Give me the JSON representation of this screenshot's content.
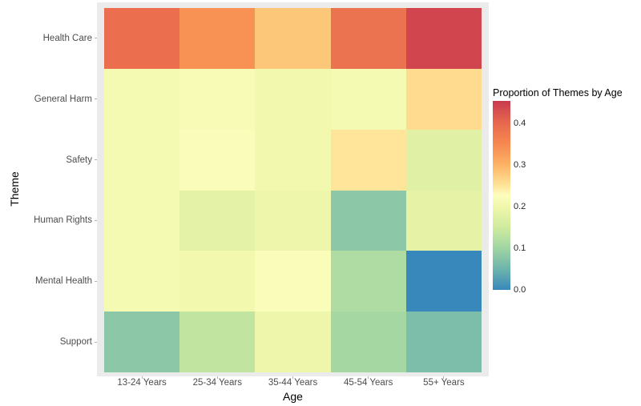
{
  "figure": {
    "background": "#ffffff",
    "panel_bg": "#ebebeb",
    "axis_label_color": "#4d4d4d",
    "title_color": "#000000"
  },
  "chart_data": {
    "type": "heatmap",
    "title": "",
    "xlabel": "Age",
    "ylabel": "Theme",
    "x_categories": [
      "13-24 Years",
      "25-34 Years",
      "35-44 Years",
      "45-54 Years",
      "55+ Years"
    ],
    "y_categories": [
      "Health Care",
      "General Harm",
      "Safety",
      "Human Rights",
      "Mental Health",
      "Support"
    ],
    "values": [
      [
        0.39,
        0.34,
        0.28,
        0.385,
        0.44
      ],
      [
        0.21,
        0.215,
        0.205,
        0.21,
        0.26
      ],
      [
        0.21,
        0.22,
        0.205,
        0.25,
        0.175
      ],
      [
        0.21,
        0.18,
        0.195,
        0.08,
        0.185
      ],
      [
        0.21,
        0.205,
        0.22,
        0.115,
        0.0
      ],
      [
        0.08,
        0.135,
        0.195,
        0.105,
        0.065
      ]
    ],
    "legend": {
      "title": "Proportion of Themes by Age",
      "position": "right",
      "ticks": [
        {
          "value": 0.4,
          "label": "0.4"
        },
        {
          "value": 0.3,
          "label": "0.3"
        },
        {
          "value": 0.2,
          "label": "0.2"
        },
        {
          "value": 0.1,
          "label": "0.1"
        },
        {
          "value": 0.0,
          "label": "0.0"
        }
      ]
    },
    "scale": {
      "min": 0,
      "max": 0.454,
      "palette": "spectral-reversed",
      "anchors": [
        [
          0.0,
          "#3888bc"
        ],
        [
          0.05,
          "#6db4ac"
        ],
        [
          0.1,
          "#a0d5a3"
        ],
        [
          0.15,
          "#cfeb9e"
        ],
        [
          0.2,
          "#f0f7ab"
        ],
        [
          0.227,
          "#fefebf"
        ],
        [
          0.25,
          "#fee59a"
        ],
        [
          0.3,
          "#fdb365"
        ],
        [
          0.35,
          "#f68950"
        ],
        [
          0.4,
          "#e8694e"
        ],
        [
          0.454,
          "#c93a4e"
        ]
      ]
    },
    "grid": "off"
  }
}
